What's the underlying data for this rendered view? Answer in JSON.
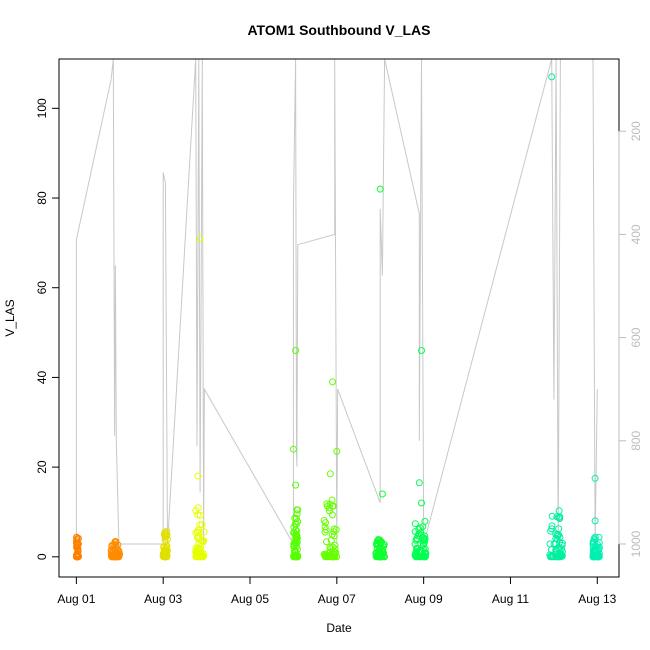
{
  "chart_data": {
    "type": "scatter",
    "title": "ATOM1 Southbound V_LAS",
    "xlabel": "Date",
    "ylabel": "V_LAS",
    "x_ticks": [
      {
        "day": 1,
        "label": "Aug 01"
      },
      {
        "day": 3,
        "label": "Aug 03"
      },
      {
        "day": 5,
        "label": "Aug 05"
      },
      {
        "day": 7,
        "label": "Aug 07"
      },
      {
        "day": 9,
        "label": "Aug 09"
      },
      {
        "day": 11,
        "label": "Aug 11"
      },
      {
        "day": 13,
        "label": "Aug 13"
      }
    ],
    "xlim": [
      0.6,
      13.5
    ],
    "y_ticks": [
      0,
      20,
      40,
      60,
      80,
      100
    ],
    "ylim": [
      -4.5,
      111
    ],
    "y2_ticks": [
      200,
      400,
      600,
      800,
      1000
    ],
    "y2lim": [
      1064,
      60
    ],
    "grid": false,
    "clusters": [
      {
        "x_start": 1.0,
        "x_end": 1.05,
        "y_max": 4.5,
        "color": "#FF8000"
      },
      {
        "x_start": 1.8,
        "x_end": 2.0,
        "y_max": 3.5,
        "color": "#FF8C00"
      },
      {
        "x_start": 3.0,
        "x_end": 3.1,
        "y_max": 5.8,
        "color": "#E0E000"
      },
      {
        "x_start": 3.75,
        "x_end": 3.95,
        "y_max": 11.0,
        "color": "#E6FF00"
      },
      {
        "x_start": 6.0,
        "x_end": 6.1,
        "y_max": 11.0,
        "color": "#55FF00"
      },
      {
        "x_start": 6.7,
        "x_end": 7.0,
        "y_max": 14.0,
        "color": "#66FF00"
      },
      {
        "x_start": 7.9,
        "x_end": 8.1,
        "y_max": 4.0,
        "color": "#10FF30"
      },
      {
        "x_start": 8.8,
        "x_end": 9.05,
        "y_max": 9.0,
        "color": "#00FF50"
      },
      {
        "x_start": 11.9,
        "x_end": 12.2,
        "y_max": 11.0,
        "color": "#00F0A0"
      },
      {
        "x_start": 12.9,
        "x_end": 13.05,
        "y_max": 5.0,
        "color": "#00F0B0"
      }
    ],
    "outlier_points": [
      {
        "x": 3.8,
        "y": 18,
        "color": "#E6FF00"
      },
      {
        "x": 3.85,
        "y": 71,
        "color": "#E6FF00"
      },
      {
        "x": 6.0,
        "x_label": "",
        "y": 24,
        "color": "#55FF00"
      },
      {
        "x": 6.05,
        "y": 16,
        "color": "#55FF00"
      },
      {
        "x": 6.05,
        "y": 46,
        "color": "#55FF00"
      },
      {
        "x": 6.9,
        "y": 39,
        "color": "#66FF00"
      },
      {
        "x": 6.85,
        "y": 18.5,
        "color": "#66FF00"
      },
      {
        "x": 7.0,
        "y": 23.5,
        "color": "#66FF00"
      },
      {
        "x": 8.0,
        "y": 82,
        "color": "#10FF30"
      },
      {
        "x": 8.05,
        "y": 14,
        "color": "#10FF30"
      },
      {
        "x": 8.9,
        "y": 16.5,
        "color": "#00FF50"
      },
      {
        "x": 8.95,
        "y": 46,
        "color": "#00FF50"
      },
      {
        "x": 8.95,
        "y": 12,
        "color": "#00FF50"
      },
      {
        "x": 11.95,
        "y": 107,
        "color": "#00F0A0"
      },
      {
        "x": 12.95,
        "y": 17.5,
        "color": "#00F0B0"
      },
      {
        "x": 12.95,
        "y": 8,
        "color": "#00F0B0"
      }
    ],
    "secondary_series": {
      "color": "#c8c8c8",
      "points": [
        [
          1.0,
          1000
        ],
        [
          1.0,
          410
        ],
        [
          1.8,
          100
        ],
        [
          1.85,
          60
        ],
        [
          1.88,
          790
        ],
        [
          1.9,
          460
        ],
        [
          1.92,
          800
        ],
        [
          1.95,
          900
        ],
        [
          1.98,
          1000
        ],
        [
          2.1,
          1000
        ],
        [
          2.1,
          1000
        ],
        [
          3.0,
          1000
        ],
        [
          3.0,
          280
        ],
        [
          3.05,
          300
        ],
        [
          3.1,
          1000
        ],
        [
          3.75,
          60
        ],
        [
          3.78,
          810
        ],
        [
          3.82,
          60
        ],
        [
          3.85,
          900
        ],
        [
          3.9,
          60
        ],
        [
          3.93,
          1000
        ],
        [
          3.95,
          700
        ],
        [
          6.0,
          1000
        ],
        [
          6.0,
          350
        ],
        [
          6.05,
          60
        ],
        [
          6.07,
          820
        ],
        [
          6.08,
          850
        ],
        [
          6.1,
          420
        ],
        [
          6.95,
          400
        ],
        [
          6.95,
          60
        ],
        [
          7.0,
          1000
        ],
        [
          7.02,
          700
        ],
        [
          8.0,
          920
        ],
        [
          8.0,
          350
        ],
        [
          8.05,
          480
        ],
        [
          8.1,
          60
        ],
        [
          8.9,
          360
        ],
        [
          8.9,
          800
        ],
        [
          8.95,
          60
        ],
        [
          9.0,
          1000
        ],
        [
          11.95,
          60
        ],
        [
          12.0,
          720
        ],
        [
          12.05,
          60
        ],
        [
          12.1,
          1000
        ],
        [
          12.15,
          60
        ],
        [
          12.9,
          60
        ],
        [
          12.95,
          1000
        ],
        [
          13.0,
          700
        ]
      ]
    }
  }
}
